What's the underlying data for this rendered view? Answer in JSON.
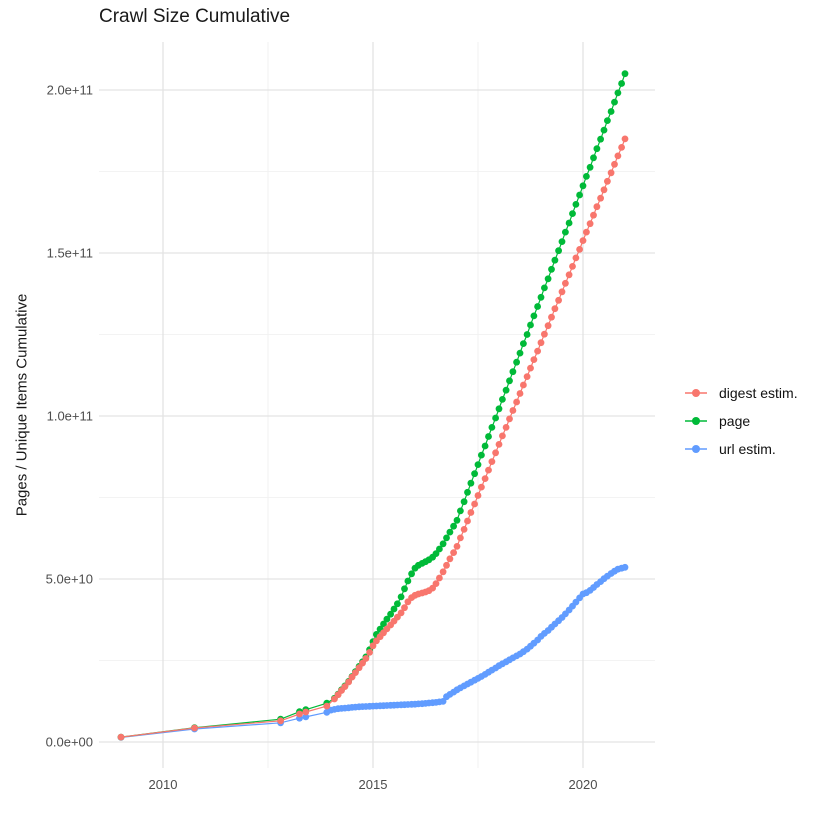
{
  "chart": {
    "title": "Crawl Size Cumulative",
    "y_axis_title": "Pages / Unique Items Cumulative"
  },
  "chart_data": {
    "type": "line",
    "title": "Crawl Size Cumulative",
    "xlabel": "",
    "ylabel": "Pages / Unique Items Cumulative",
    "legend_position": "right",
    "grid": true,
    "y_unit": "1e9",
    "xlim": [
      2008.5,
      2021.75
    ],
    "ylim_raw": [
      "0.0e+00",
      "2.15e+11"
    ],
    "x_ticks": [
      {
        "value": 2010,
        "label": "2010"
      },
      {
        "value": 2015,
        "label": "2015"
      },
      {
        "value": 2020,
        "label": "2020"
      }
    ],
    "x_minor": [
      2012.5,
      2017.5
    ],
    "y_ticks": [
      {
        "value": 0,
        "label": "0.0e+00"
      },
      {
        "value": 50,
        "label": "5.0e+10"
      },
      {
        "value": 100,
        "label": "1.0e+11"
      },
      {
        "value": 150,
        "label": "1.5e+11"
      },
      {
        "value": 200,
        "label": "2.0e+11"
      }
    ],
    "y_minor": [
      25,
      75,
      125,
      175
    ],
    "series": [
      {
        "name": "digest estim.",
        "color": "#F8766D",
        "points": [
          [
            2009,
            1.5
          ],
          [
            2010.75,
            4.3
          ],
          [
            2012.8,
            6.5
          ],
          [
            2013.25,
            8.6
          ],
          [
            2013.4,
            9.2
          ],
          [
            2013.9,
            11
          ],
          [
            2014.08,
            13.2
          ],
          [
            2014.17,
            14.5
          ],
          [
            2014.25,
            15.8
          ],
          [
            2014.33,
            17
          ],
          [
            2014.42,
            18.4
          ],
          [
            2014.5,
            19.9
          ],
          [
            2014.58,
            21.3
          ],
          [
            2014.67,
            22.8
          ],
          [
            2014.75,
            24.2
          ],
          [
            2014.83,
            25.6
          ],
          [
            2014.92,
            27.5
          ],
          [
            2015,
            29.5
          ],
          [
            2015.08,
            31
          ],
          [
            2015.17,
            32.3
          ],
          [
            2015.25,
            33.5
          ],
          [
            2015.33,
            34.7
          ],
          [
            2015.42,
            35.9
          ],
          [
            2015.5,
            37.1
          ],
          [
            2015.58,
            38.3
          ],
          [
            2015.67,
            39.6
          ],
          [
            2015.75,
            41.2
          ],
          [
            2015.83,
            43
          ],
          [
            2015.92,
            44.3
          ],
          [
            2016,
            45
          ],
          [
            2016.08,
            45.4
          ],
          [
            2016.17,
            45.7
          ],
          [
            2016.25,
            46
          ],
          [
            2016.33,
            46.4
          ],
          [
            2016.42,
            47.2
          ],
          [
            2016.5,
            48.6
          ],
          [
            2016.58,
            50.3
          ],
          [
            2016.67,
            52.2
          ],
          [
            2016.75,
            54.2
          ],
          [
            2016.83,
            56.2
          ],
          [
            2016.92,
            58.1
          ],
          [
            2017,
            60
          ],
          [
            2017.08,
            62.6
          ],
          [
            2017.17,
            65.2
          ],
          [
            2017.25,
            67.8
          ],
          [
            2017.33,
            70.4
          ],
          [
            2017.42,
            73
          ],
          [
            2017.5,
            75.6
          ],
          [
            2017.58,
            78.2
          ],
          [
            2017.67,
            80.8
          ],
          [
            2017.75,
            83.4
          ],
          [
            2017.83,
            86
          ],
          [
            2017.92,
            88.7
          ],
          [
            2018,
            91.3
          ],
          [
            2018.08,
            93.9
          ],
          [
            2018.17,
            96.5
          ],
          [
            2018.25,
            99.1
          ],
          [
            2018.33,
            101.7
          ],
          [
            2018.42,
            104.3
          ],
          [
            2018.5,
            106.9
          ],
          [
            2018.58,
            109.5
          ],
          [
            2018.67,
            112.1
          ],
          [
            2018.75,
            114.7
          ],
          [
            2018.83,
            117.3
          ],
          [
            2018.92,
            119.9
          ],
          [
            2019,
            122.5
          ],
          [
            2019.08,
            125.1
          ],
          [
            2019.17,
            127.7
          ],
          [
            2019.25,
            130.3
          ],
          [
            2019.33,
            132.9
          ],
          [
            2019.42,
            135.5
          ],
          [
            2019.5,
            138.1
          ],
          [
            2019.58,
            140.7
          ],
          [
            2019.67,
            143.3
          ],
          [
            2019.75,
            145.9
          ],
          [
            2019.83,
            148.5
          ],
          [
            2019.92,
            151.1
          ],
          [
            2020,
            153.8
          ],
          [
            2020.08,
            156.4
          ],
          [
            2020.17,
            159
          ],
          [
            2020.25,
            161.6
          ],
          [
            2020.33,
            164.2
          ],
          [
            2020.42,
            166.8
          ],
          [
            2020.5,
            169.4
          ],
          [
            2020.58,
            172
          ],
          [
            2020.67,
            174.6
          ],
          [
            2020.75,
            177.2
          ],
          [
            2020.83,
            179.8
          ],
          [
            2020.92,
            182.4
          ],
          [
            2021,
            185
          ]
        ]
      },
      {
        "name": "page",
        "color": "#00BA38",
        "points": [
          [
            2009,
            1.5
          ],
          [
            2010.75,
            4.4
          ],
          [
            2012.8,
            7
          ],
          [
            2013.25,
            9.3
          ],
          [
            2013.4,
            9.9
          ],
          [
            2013.9,
            11.9
          ],
          [
            2014.08,
            13.4
          ],
          [
            2014.17,
            14.7
          ],
          [
            2014.25,
            16
          ],
          [
            2014.33,
            17.2
          ],
          [
            2014.42,
            18.6
          ],
          [
            2014.5,
            20.1
          ],
          [
            2014.58,
            21.6
          ],
          [
            2014.67,
            23.2
          ],
          [
            2014.75,
            24.6
          ],
          [
            2014.83,
            26.1
          ],
          [
            2014.92,
            28.3
          ],
          [
            2015,
            30.8
          ],
          [
            2015.08,
            33
          ],
          [
            2015.17,
            34.6
          ],
          [
            2015.25,
            36.2
          ],
          [
            2015.33,
            37.7
          ],
          [
            2015.42,
            39.2
          ],
          [
            2015.5,
            40.8
          ],
          [
            2015.58,
            42.4
          ],
          [
            2015.67,
            44.5
          ],
          [
            2015.75,
            47
          ],
          [
            2015.83,
            49.4
          ],
          [
            2015.92,
            51.6
          ],
          [
            2016,
            53.3
          ],
          [
            2016.08,
            54.2
          ],
          [
            2016.17,
            54.8
          ],
          [
            2016.25,
            55.3
          ],
          [
            2016.33,
            55.9
          ],
          [
            2016.42,
            56.7
          ],
          [
            2016.5,
            57.8
          ],
          [
            2016.58,
            59.2
          ],
          [
            2016.67,
            60.8
          ],
          [
            2016.75,
            62.6
          ],
          [
            2016.83,
            64.4
          ],
          [
            2016.92,
            66.2
          ],
          [
            2017,
            68
          ],
          [
            2017.08,
            70.9
          ],
          [
            2017.17,
            73.7
          ],
          [
            2017.25,
            76.6
          ],
          [
            2017.33,
            79.4
          ],
          [
            2017.42,
            82.3
          ],
          [
            2017.5,
            85.1
          ],
          [
            2017.58,
            88
          ],
          [
            2017.67,
            90.8
          ],
          [
            2017.75,
            93.7
          ],
          [
            2017.83,
            96.5
          ],
          [
            2017.92,
            99.4
          ],
          [
            2018,
            102.2
          ],
          [
            2018.08,
            105.1
          ],
          [
            2018.17,
            107.9
          ],
          [
            2018.25,
            110.8
          ],
          [
            2018.33,
            113.6
          ],
          [
            2018.42,
            116.5
          ],
          [
            2018.5,
            119.3
          ],
          [
            2018.58,
            122.2
          ],
          [
            2018.67,
            125
          ],
          [
            2018.75,
            127.9
          ],
          [
            2018.83,
            130.7
          ],
          [
            2018.92,
            133.6
          ],
          [
            2019,
            136.4
          ],
          [
            2019.08,
            139.3
          ],
          [
            2019.17,
            142.1
          ],
          [
            2019.25,
            145
          ],
          [
            2019.33,
            147.8
          ],
          [
            2019.42,
            150.7
          ],
          [
            2019.5,
            153.5
          ],
          [
            2019.58,
            156.4
          ],
          [
            2019.67,
            159.2
          ],
          [
            2019.75,
            162.1
          ],
          [
            2019.83,
            164.9
          ],
          [
            2019.92,
            167.8
          ],
          [
            2020,
            170.6
          ],
          [
            2020.08,
            173.5
          ],
          [
            2020.17,
            176.3
          ],
          [
            2020.25,
            179.2
          ],
          [
            2020.33,
            182
          ],
          [
            2020.42,
            184.9
          ],
          [
            2020.5,
            187.7
          ],
          [
            2020.58,
            190.6
          ],
          [
            2020.67,
            193.4
          ],
          [
            2020.75,
            196.3
          ],
          [
            2020.83,
            199.1
          ],
          [
            2020.92,
            202
          ],
          [
            2021,
            205
          ]
        ]
      },
      {
        "name": "url estim.",
        "color": "#619CFF",
        "points": [
          [
            2009,
            1.4
          ],
          [
            2010.75,
            4
          ],
          [
            2012.8,
            5.9
          ],
          [
            2013.25,
            7.3
          ],
          [
            2013.4,
            7.7
          ],
          [
            2013.9,
            9.1
          ],
          [
            2014,
            9.8
          ],
          [
            2014.08,
            10
          ],
          [
            2014.17,
            10.2
          ],
          [
            2014.25,
            10.3
          ],
          [
            2014.33,
            10.4
          ],
          [
            2014.42,
            10.5
          ],
          [
            2014.5,
            10.6
          ],
          [
            2014.58,
            10.7
          ],
          [
            2014.67,
            10.8
          ],
          [
            2014.75,
            10.85
          ],
          [
            2014.83,
            10.9
          ],
          [
            2014.92,
            10.95
          ],
          [
            2015,
            11
          ],
          [
            2015.08,
            11.05
          ],
          [
            2015.17,
            11.1
          ],
          [
            2015.25,
            11.15
          ],
          [
            2015.33,
            11.2
          ],
          [
            2015.42,
            11.25
          ],
          [
            2015.5,
            11.3
          ],
          [
            2015.58,
            11.35
          ],
          [
            2015.67,
            11.4
          ],
          [
            2015.75,
            11.45
          ],
          [
            2015.83,
            11.5
          ],
          [
            2015.92,
            11.55
          ],
          [
            2016,
            11.6
          ],
          [
            2016.08,
            11.7
          ],
          [
            2016.17,
            11.75
          ],
          [
            2016.25,
            11.85
          ],
          [
            2016.33,
            11.95
          ],
          [
            2016.42,
            12.05
          ],
          [
            2016.5,
            12.15
          ],
          [
            2016.58,
            12.3
          ],
          [
            2016.67,
            12.45
          ],
          [
            2016.75,
            13.9
          ],
          [
            2016.83,
            14.6
          ],
          [
            2016.92,
            15.3
          ],
          [
            2017,
            16
          ],
          [
            2017.08,
            16.6
          ],
          [
            2017.17,
            17.2
          ],
          [
            2017.25,
            17.8
          ],
          [
            2017.33,
            18.35
          ],
          [
            2017.42,
            18.95
          ],
          [
            2017.5,
            19.5
          ],
          [
            2017.58,
            20.1
          ],
          [
            2017.67,
            20.75
          ],
          [
            2017.75,
            21.4
          ],
          [
            2017.83,
            22.05
          ],
          [
            2017.92,
            22.7
          ],
          [
            2018,
            23.4
          ],
          [
            2018.08,
            24
          ],
          [
            2018.17,
            24.6
          ],
          [
            2018.25,
            25.2
          ],
          [
            2018.33,
            25.8
          ],
          [
            2018.42,
            26.4
          ],
          [
            2018.5,
            27
          ],
          [
            2018.58,
            27.7
          ],
          [
            2018.67,
            28.5
          ],
          [
            2018.75,
            29.4
          ],
          [
            2018.83,
            30.3
          ],
          [
            2018.92,
            31.3
          ],
          [
            2019,
            32.4
          ],
          [
            2019.08,
            33.3
          ],
          [
            2019.17,
            34.2
          ],
          [
            2019.25,
            35.2
          ],
          [
            2019.33,
            36.2
          ],
          [
            2019.42,
            37.2
          ],
          [
            2019.5,
            38.2
          ],
          [
            2019.58,
            39.3
          ],
          [
            2019.67,
            40.5
          ],
          [
            2019.75,
            41.7
          ],
          [
            2019.83,
            42.9
          ],
          [
            2019.92,
            44.2
          ],
          [
            2020,
            45.4
          ],
          [
            2020.08,
            45.8
          ],
          [
            2020.17,
            46.5
          ],
          [
            2020.25,
            47.4
          ],
          [
            2020.33,
            48.3
          ],
          [
            2020.42,
            49.2
          ],
          [
            2020.5,
            50.1
          ],
          [
            2020.58,
            50.9
          ],
          [
            2020.67,
            51.7
          ],
          [
            2020.75,
            52.4
          ],
          [
            2020.83,
            53
          ],
          [
            2020.92,
            53.3
          ],
          [
            2021,
            53.6
          ]
        ]
      }
    ]
  }
}
